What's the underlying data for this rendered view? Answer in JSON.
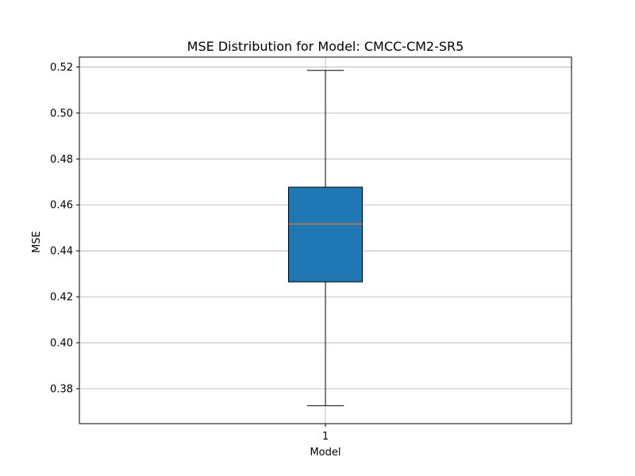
{
  "chart_data": {
    "type": "box",
    "title": "MSE Distribution for Model: CMCC-CM2-SR5",
    "xlabel": "Model",
    "ylabel": "MSE",
    "ylim": [
      0.3648,
      0.5243
    ],
    "yticks": [
      "0.38",
      "0.40",
      "0.42",
      "0.44",
      "0.46",
      "0.48",
      "0.50",
      "0.52"
    ],
    "grid": true,
    "categories": [
      "1"
    ],
    "boxes": [
      {
        "category": "1",
        "whisker_low": 0.3726,
        "q1": 0.4265,
        "median": 0.4517,
        "q3": 0.4677,
        "whisker_high": 0.5185
      }
    ],
    "colors": {
      "box_fill": "#1f77b4",
      "median": "#ff7f0e",
      "grid": "#b0b0b0",
      "axes": "#000000"
    }
  }
}
